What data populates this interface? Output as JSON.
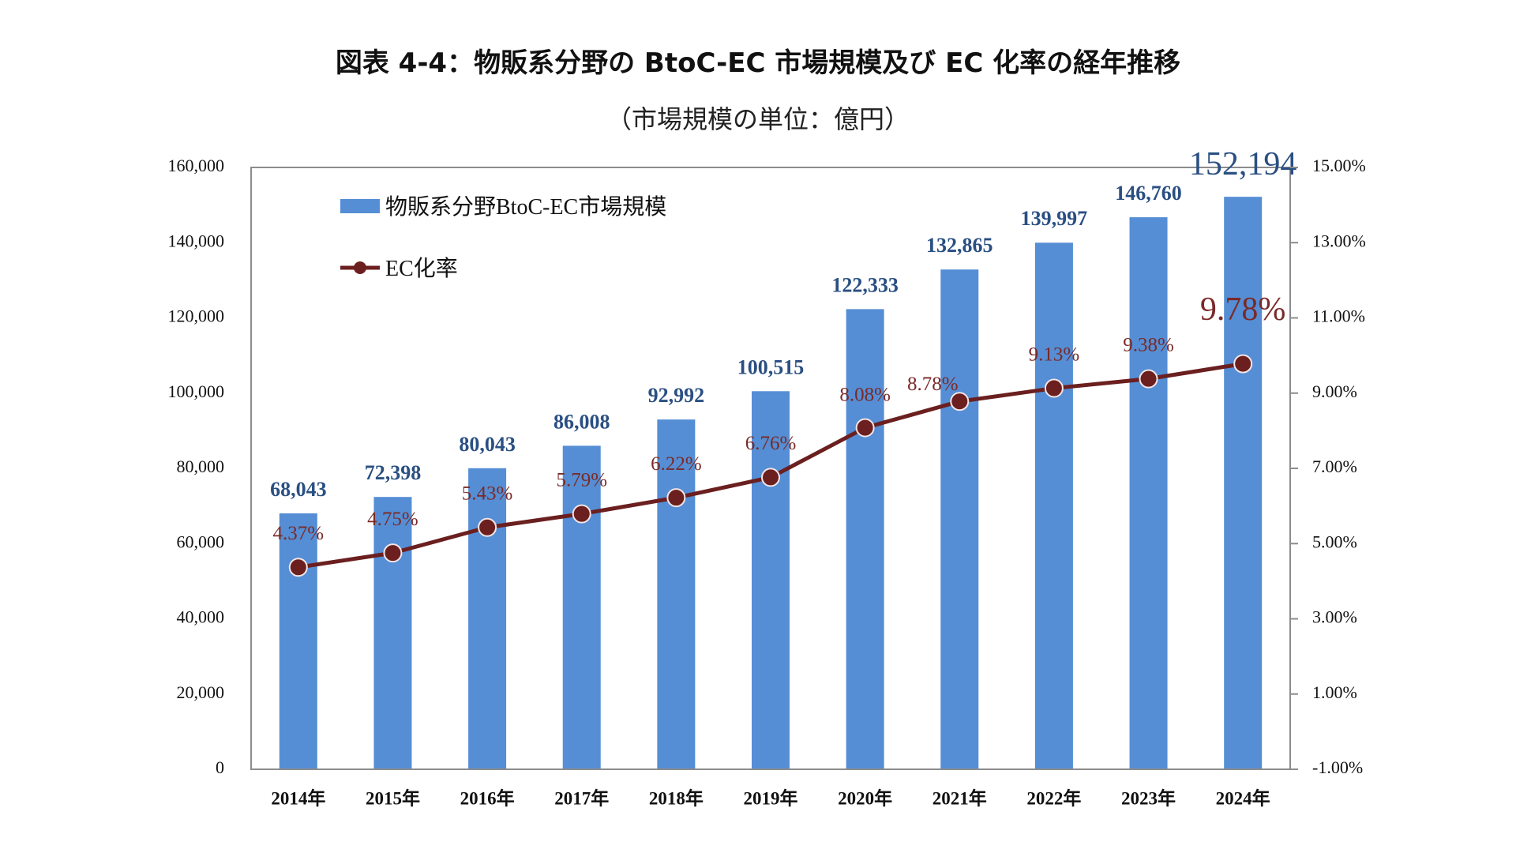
{
  "header": {
    "title": "図表 4-4：物販系分野の BtoC-EC 市場規模及び EC 化率の経年推移",
    "subtitle": "（市場規模の単位：億円）"
  },
  "colors": {
    "bar": "#558ed5",
    "line": "#6b1f1f",
    "bar_label": "#2a4f82",
    "line_label": "#7a2a28",
    "axis": "#8c8c8c"
  },
  "chart_data": {
    "type": "bar+line",
    "title": "図表 4-4：物販系分野の BtoC-EC 市場規模及び EC 化率の経年推移",
    "subtitle": "（市場規模の単位：億円）",
    "categories": [
      "2014年",
      "2015年",
      "2016年",
      "2017年",
      "2018年",
      "2019年",
      "2020年",
      "2021年",
      "2022年",
      "2023年",
      "2024年"
    ],
    "series": [
      {
        "name": "物販系分野BtoC-EC市場規模",
        "type": "bar",
        "axis": "left",
        "values": [
          68043,
          72398,
          80043,
          86008,
          92992,
          100515,
          122333,
          132865,
          139997,
          146760,
          152194
        ],
        "labels": [
          "68,043",
          "72,398",
          "80,043",
          "86,008",
          "92,992",
          "100,515",
          "122,333",
          "132,865",
          "139,997",
          "146,760",
          "152,194"
        ],
        "highlight_last": true
      },
      {
        "name": "EC化率",
        "type": "line",
        "axis": "right",
        "values": [
          4.37,
          4.75,
          5.43,
          5.79,
          6.22,
          6.76,
          8.08,
          8.78,
          9.13,
          9.38,
          9.78
        ],
        "labels": [
          "4.37%",
          "4.75%",
          "5.43%",
          "5.79%",
          "6.22%",
          "6.76%",
          "8.08%",
          "8.78%",
          "9.13%",
          "9.38%",
          "9.78%"
        ],
        "highlight_last": true
      }
    ],
    "y_left": {
      "range": [
        0,
        160000
      ],
      "ticks": [
        0,
        20000,
        40000,
        60000,
        80000,
        100000,
        120000,
        140000,
        160000
      ],
      "tick_labels": [
        "0",
        "20,000",
        "40,000",
        "60,000",
        "80,000",
        "100,000",
        "120,000",
        "140,000",
        "160,000"
      ]
    },
    "y_right": {
      "range": [
        -1,
        15
      ],
      "ticks": [
        -1,
        1,
        3,
        5,
        7,
        9,
        11,
        13,
        15
      ],
      "tick_labels": [
        "-1.00%",
        "1.00%",
        "3.00%",
        "5.00%",
        "7.00%",
        "9.00%",
        "11.00%",
        "13.00%",
        "15.00%"
      ]
    },
    "xlabel": "",
    "ylabel": "",
    "grid": false,
    "legend": {
      "position": "top-left",
      "entries": [
        "物販系分野BtoC-EC市場規模",
        "EC化率"
      ]
    }
  }
}
